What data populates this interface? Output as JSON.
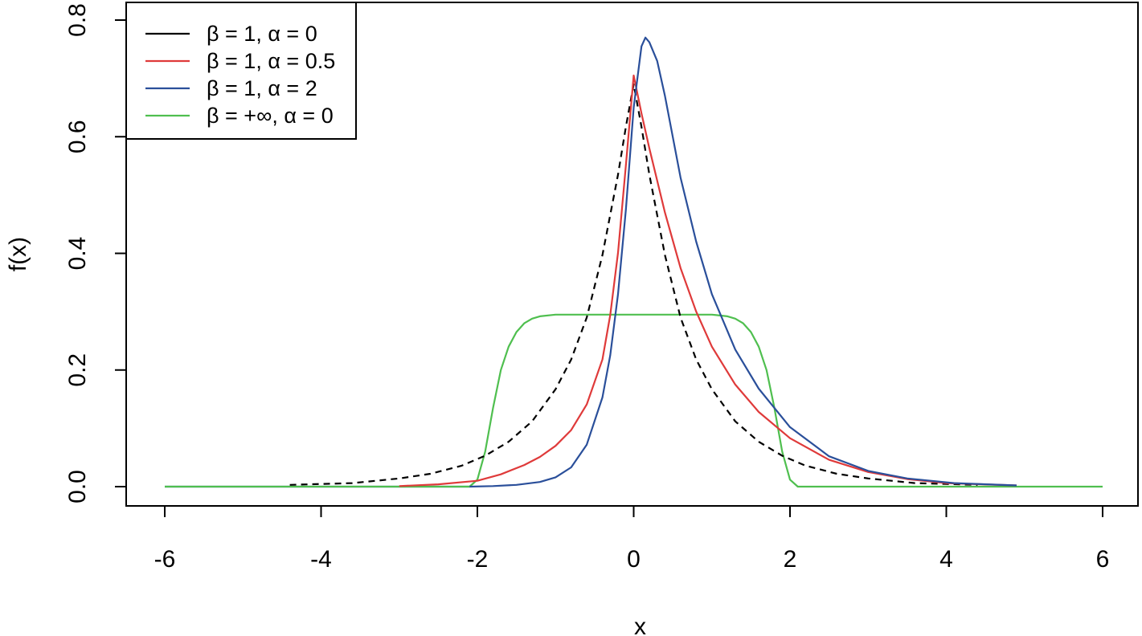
{
  "chart_data": {
    "type": "line",
    "title": "",
    "xlabel": "x",
    "ylabel": "f(x)",
    "xlim": [
      -6,
      6
    ],
    "ylim": [
      0,
      0.8
    ],
    "xticks": [
      -6,
      -4,
      -2,
      0,
      2,
      4,
      6
    ],
    "xtick_labels": [
      "-6",
      "-4",
      "-2",
      "0",
      "2",
      "4",
      "6"
    ],
    "yticks": [
      0,
      0.2,
      0.4,
      0.6,
      0.8
    ],
    "ytick_labels": [
      "0.0",
      "0.2",
      "0.4",
      "0.6",
      "0.8"
    ],
    "grid": false,
    "legend_position": "top-left",
    "series": [
      {
        "name": "β = 1, α = 0",
        "color": "#000000",
        "dashed": true,
        "x": [
          -4.4,
          -3.6,
          -3.0,
          -2.6,
          -2.2,
          -1.9,
          -1.6,
          -1.3,
          -1.0,
          -0.8,
          -0.6,
          -0.4,
          -0.2,
          -0.1,
          0.0,
          0.1,
          0.2,
          0.4,
          0.6,
          0.8,
          1.0,
          1.3,
          1.6,
          1.9,
          2.2,
          2.6,
          3.0,
          3.6,
          4.4
        ],
        "y": [
          0.003,
          0.006,
          0.014,
          0.022,
          0.036,
          0.053,
          0.077,
          0.112,
          0.167,
          0.218,
          0.29,
          0.397,
          0.535,
          0.617,
          0.69,
          0.617,
          0.535,
          0.397,
          0.29,
          0.218,
          0.167,
          0.112,
          0.077,
          0.053,
          0.036,
          0.022,
          0.014,
          0.006,
          0.003
        ]
      },
      {
        "name": "β = 1, α = 0.5",
        "color": "#df3a3a",
        "dashed": false,
        "x": [
          -3.0,
          -2.5,
          -2.0,
          -1.7,
          -1.4,
          -1.2,
          -1.0,
          -0.8,
          -0.6,
          -0.4,
          -0.3,
          -0.2,
          -0.1,
          0.0,
          0.1,
          0.2,
          0.4,
          0.6,
          0.8,
          1.0,
          1.3,
          1.6,
          2.0,
          2.5,
          3.0,
          3.5,
          4.0,
          4.9
        ],
        "y": [
          0.001,
          0.004,
          0.01,
          0.021,
          0.037,
          0.051,
          0.07,
          0.097,
          0.141,
          0.218,
          0.294,
          0.401,
          0.551,
          0.705,
          0.64,
          0.58,
          0.47,
          0.375,
          0.3,
          0.24,
          0.175,
          0.128,
          0.083,
          0.046,
          0.025,
          0.013,
          0.006,
          0.002
        ]
      },
      {
        "name": "β = 1, α = 2",
        "color": "#2a4f9a",
        "dashed": false,
        "x": [
          -2.1,
          -1.8,
          -1.5,
          -1.2,
          -1.0,
          -0.8,
          -0.6,
          -0.4,
          -0.3,
          -0.2,
          -0.1,
          0.0,
          0.1,
          0.15,
          0.2,
          0.3,
          0.4,
          0.6,
          0.8,
          1.0,
          1.3,
          1.6,
          2.0,
          2.5,
          3.0,
          3.5,
          4.1,
          4.9
        ],
        "y": [
          0.0,
          0.001,
          0.003,
          0.008,
          0.016,
          0.033,
          0.072,
          0.153,
          0.225,
          0.33,
          0.475,
          0.65,
          0.755,
          0.77,
          0.762,
          0.73,
          0.67,
          0.53,
          0.42,
          0.33,
          0.235,
          0.168,
          0.102,
          0.052,
          0.027,
          0.014,
          0.006,
          0.002
        ]
      },
      {
        "name": "β = +∞, α = 0",
        "color": "#4fbf4f",
        "dashed": false,
        "x": [
          -6.0,
          -2.1,
          -2.0,
          -1.9,
          -1.8,
          -1.7,
          -1.6,
          -1.5,
          -1.4,
          -1.3,
          -1.2,
          -1.0,
          0.0,
          1.0,
          1.2,
          1.3,
          1.4,
          1.5,
          1.6,
          1.7,
          1.8,
          1.9,
          2.0,
          2.1,
          6.0
        ],
        "y": [
          0.0,
          0.0,
          0.012,
          0.06,
          0.135,
          0.2,
          0.24,
          0.265,
          0.28,
          0.288,
          0.292,
          0.295,
          0.295,
          0.295,
          0.292,
          0.288,
          0.28,
          0.265,
          0.24,
          0.2,
          0.135,
          0.06,
          0.012,
          0.0,
          0.0
        ]
      },
      {
        "name": "",
        "color": "#2a4f9a",
        "dashed": false,
        "legend": false,
        "x": [
          -6.0,
          -2.1
        ],
        "y": [
          0.0,
          0.0
        ]
      }
    ]
  }
}
